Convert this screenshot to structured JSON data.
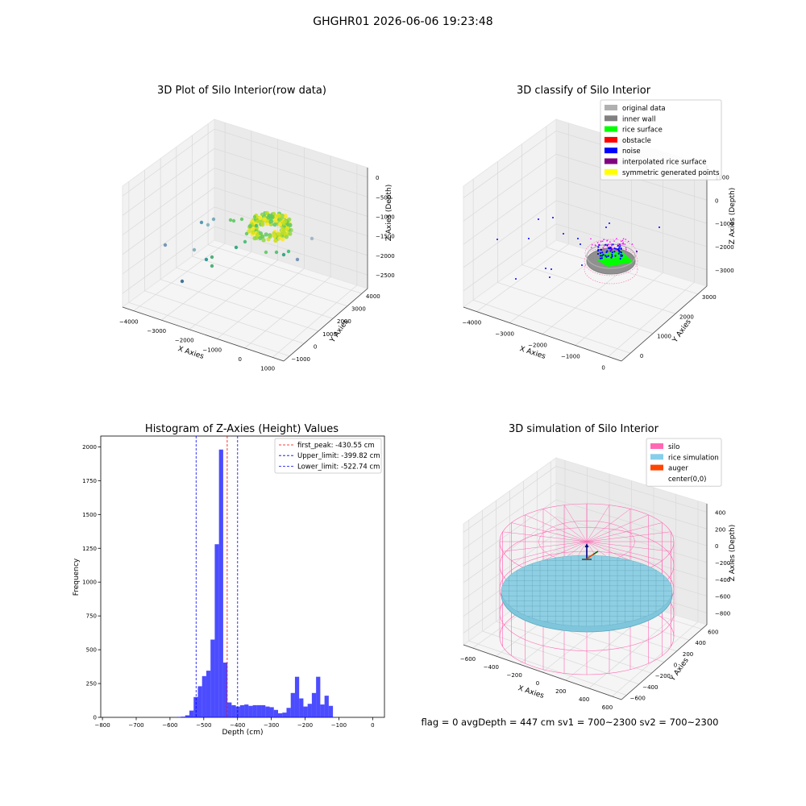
{
  "figure": {
    "suptitle": "GHGHR01 2026-06-06 19:23:48",
    "footer_text": "flag = 0     avgDepth = 447 cm  sv1 = 700~2300  sv2 = 700~2300"
  },
  "chart_data": [
    {
      "type": "scatter",
      "title": "3D Plot of Silo Interior(row data)",
      "xlabel": "X Axies",
      "ylabel": "Y Axies",
      "zlabel": "Z Axies (Depth)",
      "x_ticks": [
        "−4000",
        "−3000",
        "−2000",
        "−1000",
        "0",
        "1000"
      ],
      "y_ticks": [
        "−1000",
        "0",
        "1000",
        "2000",
        "3000",
        "4000"
      ],
      "z_ticks": [
        "0",
        "−500",
        "−1000",
        "−1500",
        "−2000",
        "−2500"
      ],
      "colormap": "viridis"
    },
    {
      "type": "scatter",
      "title": "3D classify of Silo Interior",
      "xlabel": "X Axies",
      "ylabel": "Y Axies",
      "zlabel": "Z Axies (Depth)",
      "x_ticks": [
        "−4000",
        "−3000",
        "−2000",
        "−1000",
        "0"
      ],
      "y_ticks": [
        "0",
        "1000",
        "2000",
        "3000"
      ],
      "z_ticks": [
        "1000",
        "0",
        "−1000",
        "−2000",
        "−3000"
      ],
      "legend": [
        {
          "label": "original data",
          "color": "#b0b0b0"
        },
        {
          "label": "inner wall",
          "color": "#808080"
        },
        {
          "label": "rice surface",
          "color": "#00ff00"
        },
        {
          "label": "obstacle",
          "color": "#ff0000"
        },
        {
          "label": "noise",
          "color": "#0000ff"
        },
        {
          "label": "interpolated rice surface",
          "color": "#800080"
        },
        {
          "label": "symmetric generated points",
          "color": "#ffff00"
        }
      ],
      "legend_position": "top-right"
    },
    {
      "type": "bar",
      "title": "Histogram of Z-Axies (Height) Values",
      "xlabel": "Depth (cm)",
      "ylabel": "Frequency",
      "xlim": [
        -805,
        35
      ],
      "ylim": [
        0,
        2080
      ],
      "x_ticks": [
        "−800",
        "−700",
        "−600",
        "−500",
        "−400",
        "−300",
        "−200",
        "−100",
        "0"
      ],
      "y_ticks": [
        "0",
        "250",
        "500",
        "750",
        "1000",
        "1250",
        "1500",
        "1750",
        "2000"
      ],
      "bin_start": -580,
      "bin_width": 12.5,
      "values": [
        3,
        5,
        15,
        50,
        150,
        230,
        305,
        345,
        575,
        1280,
        1980,
        405,
        110,
        90,
        80,
        90,
        95,
        85,
        90,
        90,
        90,
        80,
        75,
        55,
        30,
        35,
        70,
        180,
        300,
        140,
        80,
        100,
        180,
        300,
        95,
        160,
        85
      ],
      "bar_color": "#0000ff",
      "vlines": [
        {
          "x": -430.55,
          "color": "#ff0000",
          "label": "first_peak: -430.55 cm"
        },
        {
          "x": -399.82,
          "color": "#0000ff",
          "label": "Upper_limit: -399.82 cm"
        },
        {
          "x": -522.74,
          "color": "#0000ff",
          "label": "Lower_limit: -522.74 cm"
        }
      ],
      "legend_position": "top-right"
    },
    {
      "type": "scatter",
      "title": "3D simulation of Silo Interior",
      "xlabel": "X Axies",
      "ylabel": "Y Axies",
      "zlabel": "Z Axies (Depth)",
      "x_ticks": [
        "−600",
        "−400",
        "−200",
        "0",
        "200",
        "400",
        "600"
      ],
      "y_ticks": [
        "−600",
        "−400",
        "−200",
        "0",
        "200",
        "400",
        "600"
      ],
      "z_ticks": [
        "400",
        "200",
        "0",
        "−200",
        "−400",
        "−600",
        "−800"
      ],
      "legend": [
        {
          "label": "silo",
          "color": "#ff69b4"
        },
        {
          "label": "rice simulation",
          "color": "#87ceeb"
        },
        {
          "label": "auger",
          "color": "#ff4500"
        },
        {
          "label": "center(0,0)",
          "color": ""
        }
      ],
      "legend_position": "top-right"
    }
  ]
}
